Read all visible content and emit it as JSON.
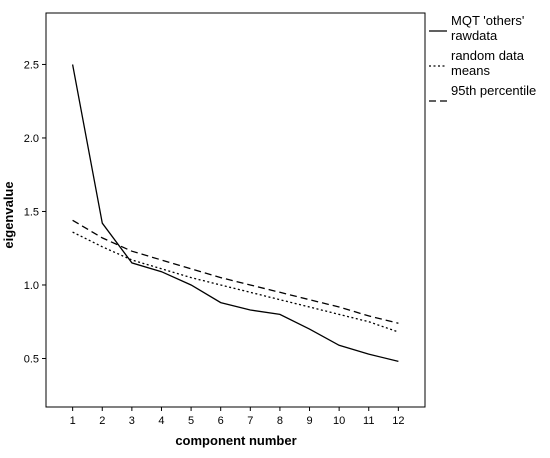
{
  "chart_data": {
    "type": "line",
    "title": "",
    "xlabel": "component number",
    "ylabel": "eigenvalue",
    "x": [
      1,
      2,
      3,
      4,
      5,
      6,
      7,
      8,
      9,
      10,
      11,
      12
    ],
    "xticks": [
      "1",
      "2",
      "3",
      "4",
      "5",
      "6",
      "7",
      "8",
      "9",
      "10",
      "11",
      "12"
    ],
    "xlim": [
      0.1,
      12.9
    ],
    "yticks": [
      0.5,
      1.0,
      1.5,
      2.0,
      2.5
    ],
    "ytick_labels": [
      "0.5",
      "1.0",
      "1.5",
      "2.0",
      "2.5"
    ],
    "ylim": [
      0.17,
      2.85
    ],
    "grid": false,
    "legend_position": "right-top",
    "series": [
      {
        "name": "MQT 'others' rawdata",
        "legend_lines": [
          "MQT 'others'",
          "rawdata"
        ],
        "style": "solid",
        "color": "#000000",
        "values": [
          2.5,
          1.42,
          1.15,
          1.09,
          1.0,
          0.88,
          0.83,
          0.8,
          0.7,
          0.59,
          0.53,
          0.48
        ]
      },
      {
        "name": "random data means",
        "legend_lines": [
          "random data",
          "means"
        ],
        "style": "dotted",
        "color": "#000000",
        "values": [
          1.36,
          1.26,
          1.17,
          1.11,
          1.05,
          1.0,
          0.95,
          0.9,
          0.85,
          0.8,
          0.75,
          0.68
        ]
      },
      {
        "name": "95th percentile",
        "legend_lines": [
          "95th percentile"
        ],
        "style": "dashed",
        "color": "#000000",
        "values": [
          1.44,
          1.32,
          1.23,
          1.17,
          1.11,
          1.05,
          1.0,
          0.95,
          0.9,
          0.85,
          0.79,
          0.74
        ]
      }
    ]
  }
}
